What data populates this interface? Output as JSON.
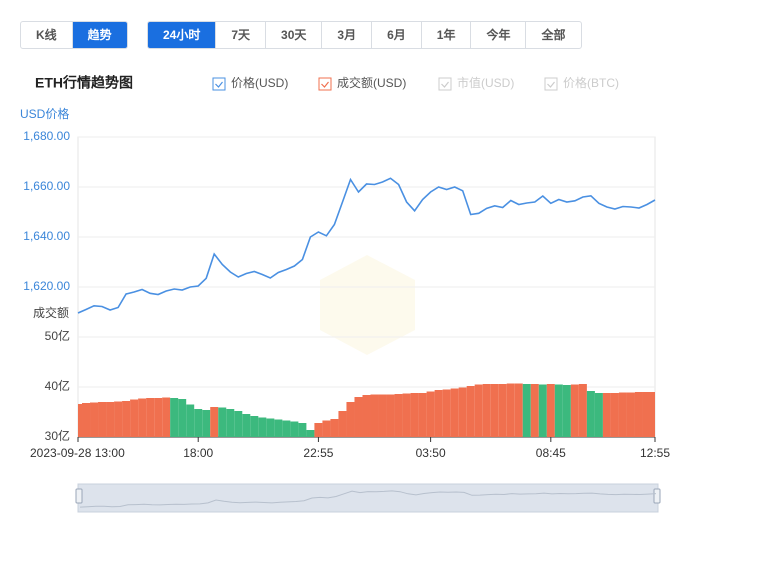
{
  "controls": {
    "view_tabs": [
      "K线",
      "趋势"
    ],
    "view_active": 1,
    "range_tabs": [
      "24小时",
      "7天",
      "30天",
      "3月",
      "6月",
      "1年",
      "今年",
      "全部"
    ],
    "range_active": 0
  },
  "chart_data": {
    "type": "line",
    "title": "ETH行情趋势图",
    "y_label": "USD价格",
    "y2_label": "成交额",
    "categories": [
      "2023-09-28 13:00",
      null,
      null,
      null,
      null,
      null,
      null,
      null,
      null,
      null,
      null,
      null,
      null,
      null,
      null,
      "18:00",
      null,
      null,
      null,
      null,
      null,
      null,
      null,
      null,
      null,
      null,
      null,
      null,
      null,
      null,
      "22:55",
      null,
      null,
      null,
      null,
      null,
      null,
      null,
      null,
      null,
      null,
      null,
      null,
      null,
      "03:50",
      null,
      null,
      null,
      null,
      null,
      null,
      null,
      null,
      null,
      null,
      null,
      null,
      null,
      null,
      "08:45",
      null,
      null,
      null,
      null,
      null,
      null,
      null,
      null,
      null,
      null,
      null,
      null,
      "12:55"
    ],
    "series": [
      {
        "name": "价格(USD)",
        "type": "line",
        "color": "#4a90e2",
        "values": [
          1609.6,
          1611.0,
          1612.5,
          1612.2,
          1610.8,
          1611.8,
          1617.2,
          1618.0,
          1619.0,
          1617.5,
          1617.0,
          1618.4,
          1619.2,
          1618.8,
          1620.0,
          1620.4,
          1623.5,
          1633.2,
          1629.0,
          1626.0,
          1624.0,
          1625.4,
          1626.2,
          1625.0,
          1623.6,
          1625.8,
          1627.0,
          1628.4,
          1631.0,
          1640.0,
          1642.0,
          1640.5,
          1645.0,
          1654.0,
          1663.0,
          1658.0,
          1661.2,
          1661.0,
          1662.0,
          1663.5,
          1661.0,
          1654.0,
          1650.5,
          1655.0,
          1658.0,
          1660.0,
          1659.0,
          1660.0,
          1658.5,
          1649.0,
          1649.5,
          1651.5,
          1652.5,
          1651.8,
          1654.6,
          1653.0,
          1653.6,
          1654.0,
          1656.4,
          1653.5,
          1655.0,
          1654.0,
          1654.5,
          1656.0,
          1656.5,
          1653.5,
          1652.0,
          1651.2,
          1652.2,
          1652.0,
          1651.6,
          1653.0,
          1654.8
        ]
      },
      {
        "name": "成交额(USD)",
        "type": "bar",
        "axis": "y2",
        "color": "#f0704f",
        "color_down": "#3cb97e",
        "values": [
          36.6,
          36.8,
          36.9,
          37.0,
          37.0,
          37.1,
          37.2,
          37.5,
          37.7,
          37.8,
          37.8,
          37.9,
          37.8,
          37.6,
          36.5,
          35.6,
          35.4,
          36.0,
          35.9,
          35.6,
          35.2,
          34.6,
          34.2,
          33.9,
          33.7,
          33.5,
          33.3,
          33.1,
          32.8,
          31.4,
          32.8,
          33.3,
          33.6,
          35.2,
          37.0,
          38.0,
          38.4,
          38.5,
          38.5,
          38.5,
          38.6,
          38.7,
          38.8,
          38.8,
          39.1,
          39.4,
          39.5,
          39.7,
          39.9,
          40.2,
          40.5,
          40.6,
          40.6,
          40.6,
          40.7,
          40.7,
          40.6,
          40.6,
          40.5,
          40.6,
          40.5,
          40.4,
          40.5,
          40.6,
          39.2,
          38.8,
          38.8,
          38.8,
          38.9,
          38.9,
          39.0,
          39.0,
          39.0
        ]
      }
    ],
    "inactive_series": [
      {
        "name": "市值(USD)",
        "color": "#cccccc"
      },
      {
        "name": "价格(BTC)",
        "color": "#cccccc"
      }
    ],
    "ylim": [
      1600,
      1680
    ],
    "yticks": [
      {
        "value": 1620,
        "label": "1,620.00"
      },
      {
        "value": 1640,
        "label": "1,640.00"
      },
      {
        "value": 1660,
        "label": "1,660.00"
      },
      {
        "value": 1680,
        "label": "1,680.00"
      }
    ],
    "y2lim": [
      30,
      50
    ],
    "y2ticks": [
      {
        "value": 30,
        "label": "30亿"
      },
      {
        "value": 40,
        "label": "40亿"
      },
      {
        "value": 50,
        "label": "50亿"
      }
    ],
    "grid": true
  }
}
